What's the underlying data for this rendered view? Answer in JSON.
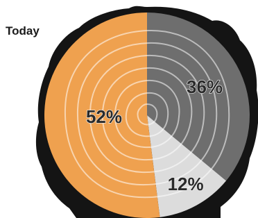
{
  "chart_data": {
    "type": "pie",
    "title": "Today",
    "values": [
      36,
      12,
      52
    ],
    "value_labels": [
      "36%",
      "12%",
      "52%"
    ],
    "colors": [
      "#6e6e6e",
      "#dcdcdc",
      "#efa14f"
    ]
  }
}
